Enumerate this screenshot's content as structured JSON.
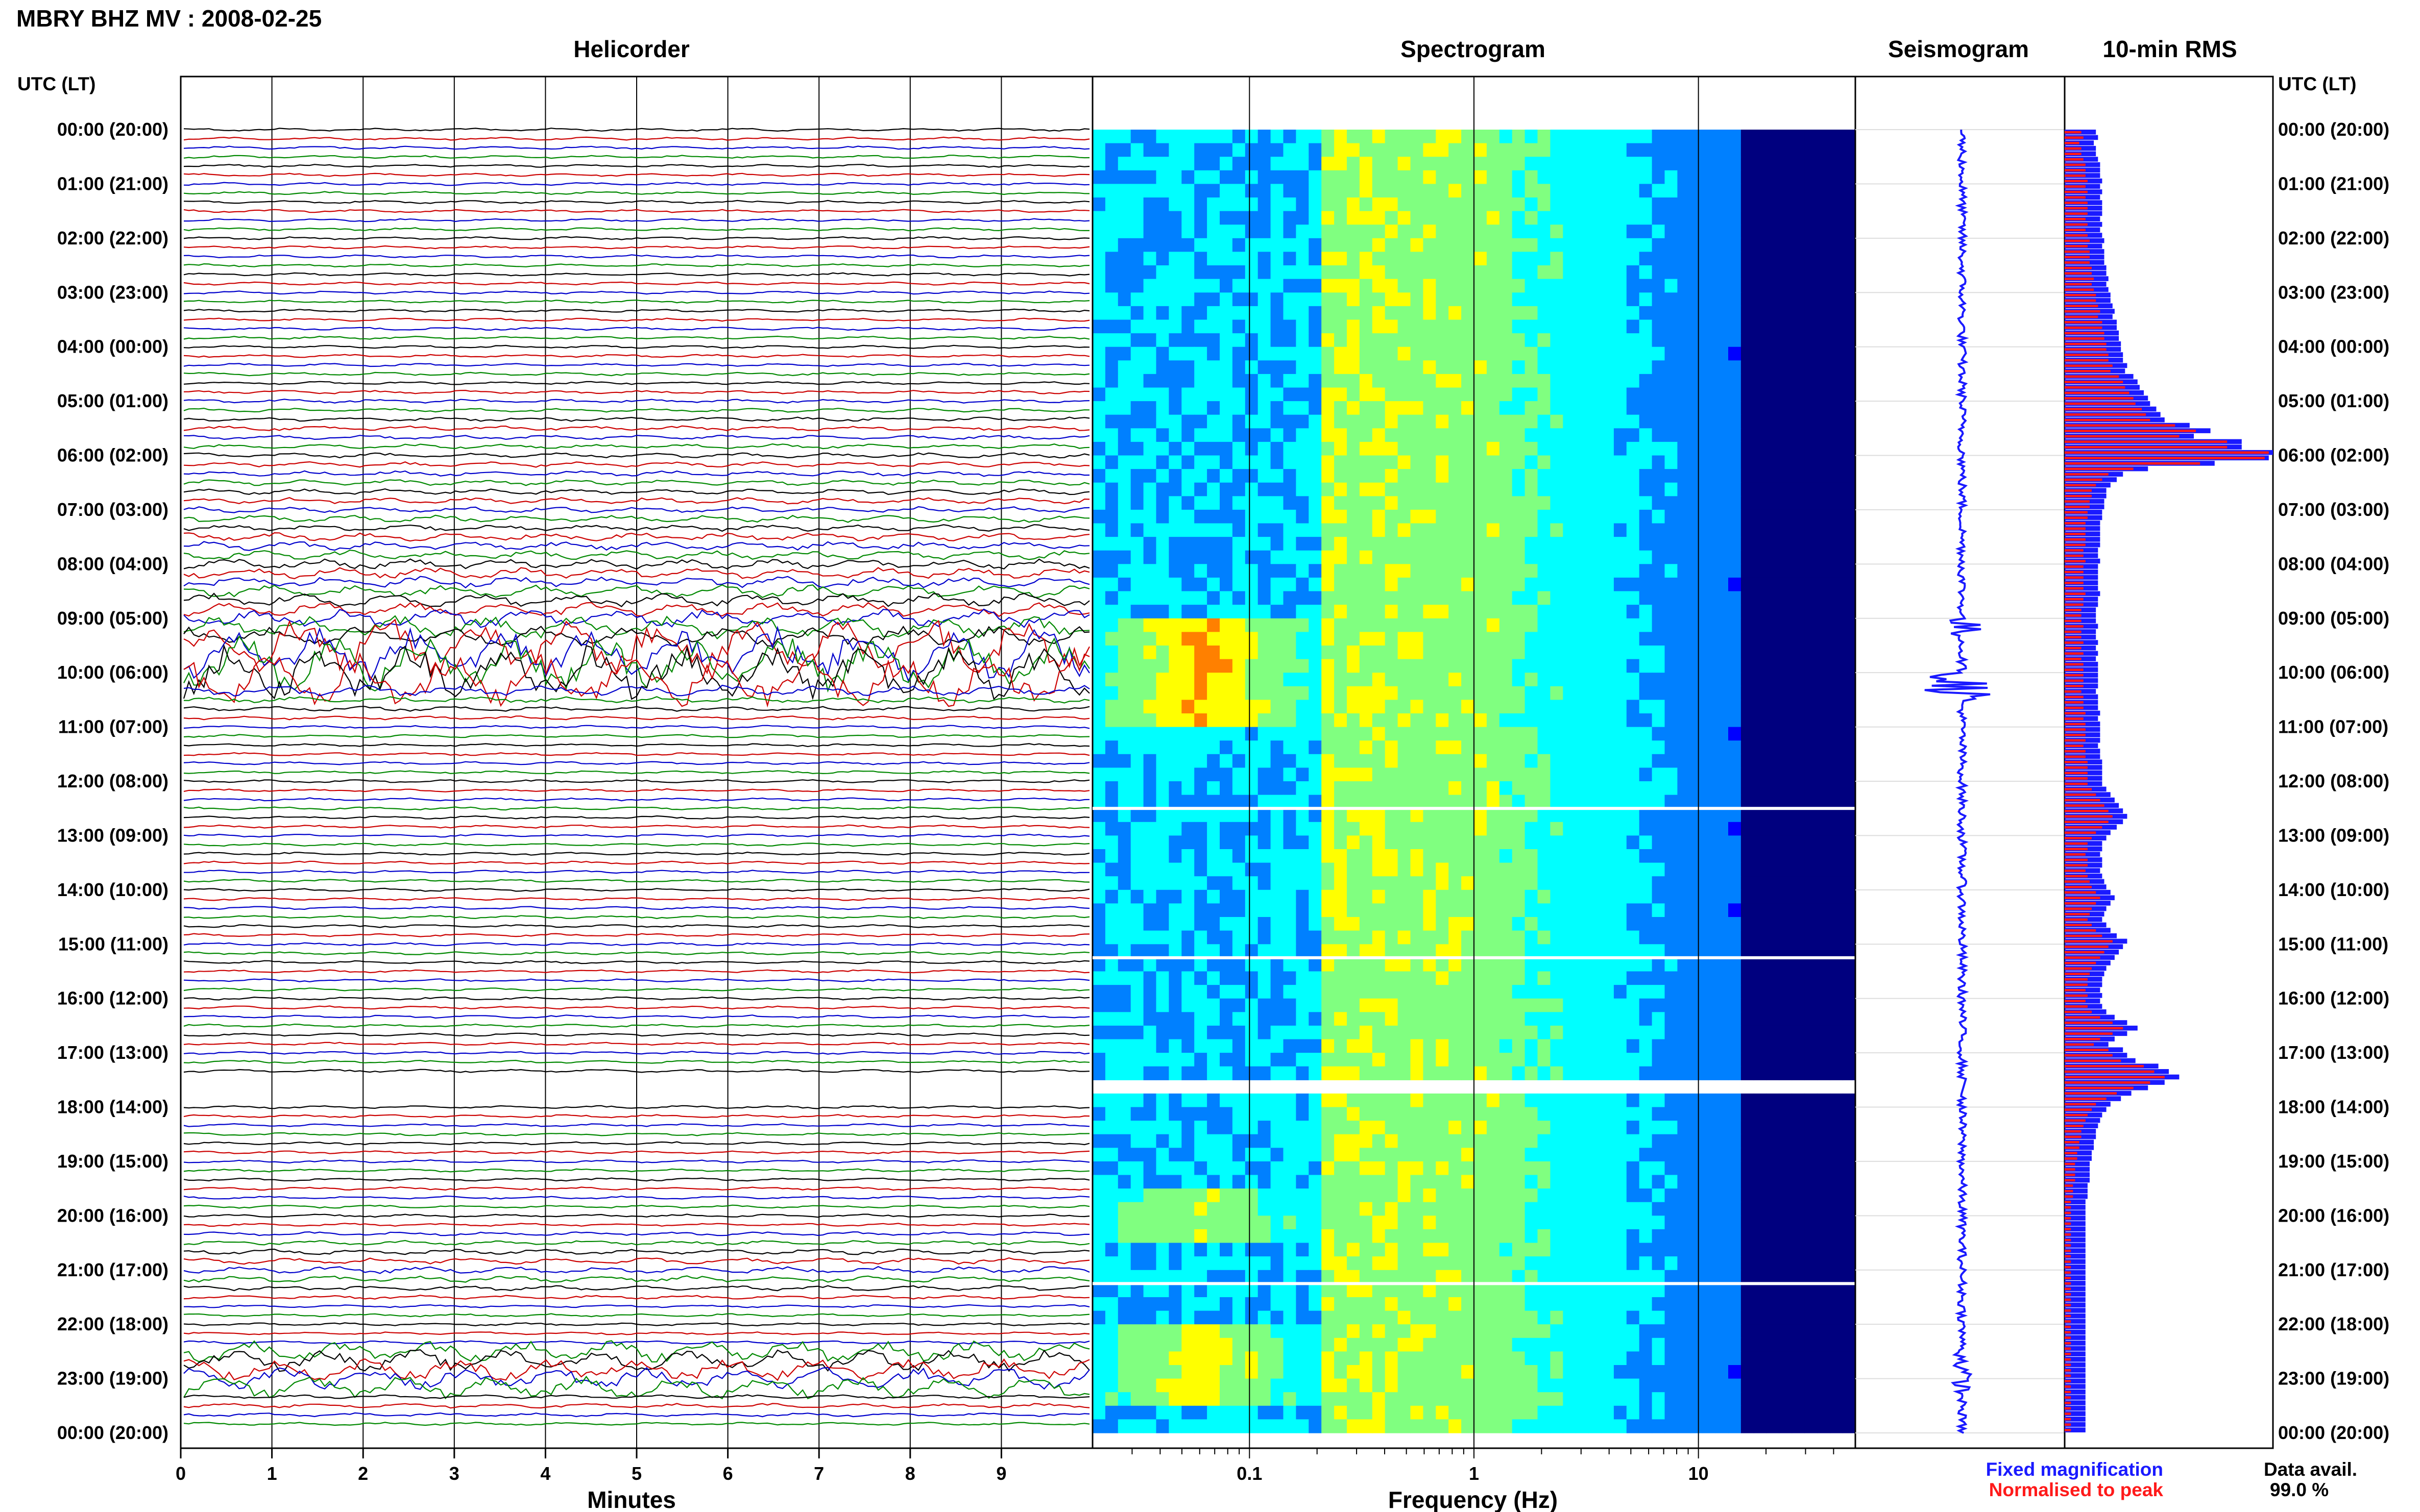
{
  "header": {
    "title": "MBRY BHZ MV : 2008-02-25",
    "utc_label_left": "UTC (LT)",
    "utc_label_right": "UTC (LT)"
  },
  "panels": {
    "helicorder": "Helicorder",
    "spectrogram": "Spectrogram",
    "seismogram": "Seismogram",
    "rms": "10-min RMS"
  },
  "axes": {
    "minutes_label": "Minutes",
    "frequency_label": "Frequency (Hz)",
    "minute_ticks": [
      "0",
      "1",
      "2",
      "3",
      "4",
      "5",
      "6",
      "7",
      "8",
      "9"
    ],
    "frequency_ticks": [
      "0.1",
      "1",
      "10"
    ]
  },
  "legend": {
    "fixed": "Fixed magnification",
    "normalised": "Normalised to peak",
    "fixed_color": "#1a1aff",
    "normalised_color": "#ff1a1a"
  },
  "availability": {
    "label": "Data avail.",
    "value": "99.0 %"
  },
  "time_labels": [
    "00:00 (20:00)",
    "01:00 (21:00)",
    "02:00 (22:00)",
    "03:00 (23:00)",
    "04:00 (00:00)",
    "05:00 (01:00)",
    "06:00 (02:00)",
    "07:00 (03:00)",
    "08:00 (04:00)",
    "09:00 (05:00)",
    "10:00 (06:00)",
    "11:00 (07:00)",
    "12:00 (08:00)",
    "13:00 (09:00)",
    "14:00 (10:00)",
    "15:00 (11:00)",
    "16:00 (12:00)",
    "17:00 (13:00)",
    "18:00 (14:00)",
    "19:00 (15:00)",
    "20:00 (16:00)",
    "21:00 (17:00)",
    "22:00 (18:00)",
    "23:00 (19:00)",
    "00:00 (20:00)"
  ],
  "chart_data": {
    "type": "heatmap",
    "station": "MBRY BHZ MV",
    "date": "2008-02-25",
    "helicorder": {
      "line_minutes": 10,
      "trace_colors": [
        "#000000",
        "#cc0000",
        "#0000cc",
        "#008800"
      ],
      "xlim_minutes": [
        0,
        10
      ]
    },
    "spectrogram": {
      "xscale": "log",
      "xlim_hz": [
        0.02,
        50
      ],
      "colormap": [
        "#00007f",
        "#0000ff",
        "#0080ff",
        "#00ffff",
        "#80ff80",
        "#ffff00",
        "#ff8000",
        "#ff0000",
        "#800000"
      ]
    },
    "rms_10min": {
      "series": [
        {
          "name": "Fixed magnification",
          "color": "#1a1aff",
          "values": [
            0.15,
            0.16,
            0.14,
            0.15,
            0.15,
            0.16,
            0.17,
            0.17,
            0.17,
            0.18,
            0.17,
            0.18,
            0.17,
            0.18,
            0.18,
            0.18,
            0.17,
            0.18,
            0.17,
            0.18,
            0.19,
            0.18,
            0.19,
            0.19,
            0.19,
            0.2,
            0.2,
            0.21,
            0.2,
            0.21,
            0.22,
            0.22,
            0.23,
            0.24,
            0.23,
            0.25,
            0.25,
            0.26,
            0.26,
            0.27,
            0.27,
            0.28,
            0.28,
            0.3,
            0.29,
            0.33,
            0.35,
            0.36,
            0.38,
            0.4,
            0.41,
            0.44,
            0.46,
            0.48,
            0.6,
            0.7,
            0.62,
            0.85,
            0.85,
            1.0,
            0.98,
            0.72,
            0.4,
            0.28,
            0.25,
            0.22,
            0.2,
            0.2,
            0.19,
            0.19,
            0.18,
            0.18,
            0.17,
            0.17,
            0.17,
            0.17,
            0.17,
            0.16,
            0.16,
            0.17,
            0.16,
            0.16,
            0.16,
            0.16,
            0.16,
            0.17,
            0.16,
            0.16,
            0.15,
            0.15,
            0.15,
            0.16,
            0.15,
            0.15,
            0.16,
            0.15,
            0.16,
            0.15,
            0.16,
            0.16,
            0.16,
            0.16,
            0.16,
            0.15,
            0.16,
            0.16,
            0.16,
            0.17,
            0.16,
            0.17,
            0.17,
            0.17,
            0.17,
            0.16,
            0.17,
            0.17,
            0.18,
            0.18,
            0.18,
            0.18,
            0.18,
            0.2,
            0.22,
            0.24,
            0.26,
            0.28,
            0.3,
            0.28,
            0.25,
            0.22,
            0.2,
            0.18,
            0.18,
            0.17,
            0.18,
            0.18,
            0.17,
            0.18,
            0.19,
            0.2,
            0.22,
            0.24,
            0.22,
            0.2,
            0.19,
            0.18,
            0.2,
            0.22,
            0.25,
            0.3,
            0.28,
            0.26,
            0.24,
            0.22,
            0.2,
            0.19,
            0.18,
            0.18,
            0.17,
            0.18,
            0.17,
            0.18,
            0.2,
            0.24,
            0.3,
            0.35,
            0.3,
            0.24,
            0.21,
            0.28,
            0.3,
            0.34,
            0.45,
            0.5,
            0.55,
            0.48,
            0.4,
            0.32,
            0.27,
            0.22,
            0.2,
            0.18,
            0.17,
            0.16,
            0.15,
            0.15,
            0.14,
            0.14,
            0.13,
            0.13,
            0.12,
            0.12,
            0.12,
            0.12,
            0.11,
            0.11,
            0.11,
            0.1,
            0.1,
            0.1,
            0.1,
            0.1,
            0.1,
            0.1,
            0.1,
            0.1,
            0.1,
            0.1,
            0.1,
            0.1,
            0.1,
            0.1,
            0.1,
            0.1,
            0.1,
            0.1,
            0.1,
            0.1,
            0.1,
            0.1,
            0.1,
            0.1,
            0.1,
            0.1,
            0.1,
            0.1,
            0.1,
            0.1,
            0.1,
            0.1,
            0.1,
            0.1,
            0.1,
            0.1,
            0.1,
            0.1,
            0.1,
            0.1,
            0.1,
            0.1
          ]
        },
        {
          "name": "Normalised to peak",
          "color": "#ff1a1a",
          "values": [
            0.08,
            0.09,
            0.07,
            0.08,
            0.08,
            0.09,
            0.1,
            0.1,
            0.1,
            0.11,
            0.1,
            0.11,
            0.1,
            0.11,
            0.11,
            0.11,
            0.1,
            0.11,
            0.1,
            0.11,
            0.12,
            0.11,
            0.12,
            0.12,
            0.12,
            0.13,
            0.13,
            0.14,
            0.13,
            0.14,
            0.15,
            0.15,
            0.16,
            0.17,
            0.16,
            0.18,
            0.18,
            0.19,
            0.19,
            0.2,
            0.2,
            0.21,
            0.21,
            0.23,
            0.22,
            0.26,
            0.28,
            0.29,
            0.31,
            0.33,
            0.34,
            0.37,
            0.39,
            0.41,
            0.53,
            0.63,
            0.55,
            0.78,
            0.78,
            0.98,
            0.96,
            0.65,
            0.33,
            0.21,
            0.18,
            0.15,
            0.13,
            0.13,
            0.12,
            0.12,
            0.11,
            0.11,
            0.1,
            0.1,
            0.1,
            0.1,
            0.1,
            0.09,
            0.09,
            0.1,
            0.09,
            0.09,
            0.09,
            0.09,
            0.09,
            0.1,
            0.09,
            0.09,
            0.08,
            0.08,
            0.08,
            0.09,
            0.08,
            0.08,
            0.09,
            0.08,
            0.09,
            0.08,
            0.09,
            0.09,
            0.09,
            0.09,
            0.09,
            0.08,
            0.09,
            0.09,
            0.09,
            0.1,
            0.09,
            0.1,
            0.1,
            0.1,
            0.1,
            0.09,
            0.1,
            0.1,
            0.11,
            0.11,
            0.11,
            0.11,
            0.11,
            0.13,
            0.15,
            0.17,
            0.19,
            0.21,
            0.23,
            0.21,
            0.18,
            0.15,
            0.13,
            0.11,
            0.11,
            0.1,
            0.11,
            0.11,
            0.1,
            0.11,
            0.12,
            0.13,
            0.15,
            0.17,
            0.15,
            0.13,
            0.12,
            0.11,
            0.13,
            0.15,
            0.18,
            0.23,
            0.21,
            0.19,
            0.17,
            0.15,
            0.13,
            0.12,
            0.11,
            0.11,
            0.1,
            0.11,
            0.1,
            0.11,
            0.13,
            0.17,
            0.23,
            0.28,
            0.23,
            0.17,
            0.14,
            0.21,
            0.23,
            0.27,
            0.38,
            0.43,
            0.48,
            0.41,
            0.33,
            0.25,
            0.2,
            0.15,
            0.13,
            0.11,
            0.1,
            0.09,
            0.08,
            0.08,
            0.07,
            0.07,
            0.06,
            0.06,
            0.05,
            0.05,
            0.05,
            0.05,
            0.04,
            0.04,
            0.04,
            0.03,
            0.03,
            0.03,
            0.03,
            0.03,
            0.03,
            0.03,
            0.03,
            0.03,
            0.03,
            0.03,
            0.03,
            0.03,
            0.03,
            0.03,
            0.03,
            0.03,
            0.03,
            0.03,
            0.03,
            0.03,
            0.03,
            0.03,
            0.03,
            0.03,
            0.03,
            0.03,
            0.03,
            0.03,
            0.03,
            0.03,
            0.03,
            0.03,
            0.03,
            0.03,
            0.03,
            0.03,
            0.03,
            0.03,
            0.03,
            0.03,
            0.03,
            0.03
          ]
        }
      ]
    }
  }
}
